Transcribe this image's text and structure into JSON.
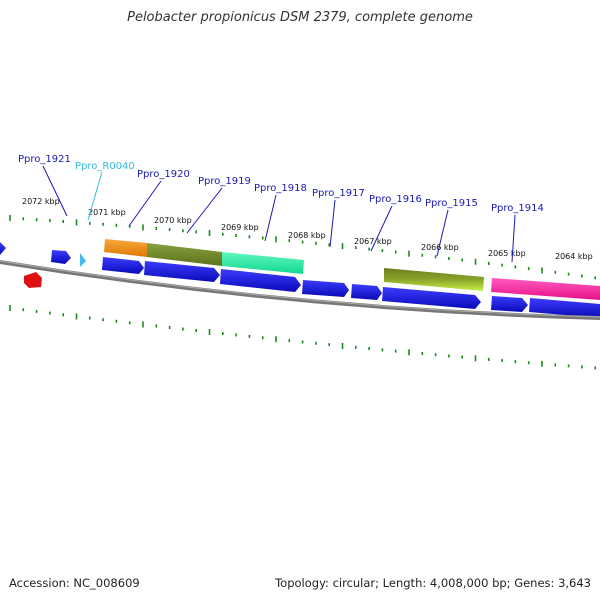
{
  "title": "Pelobacter propionicus DSM 2379, complete genome",
  "footer": {
    "accession": "Accession: NC_008609",
    "topology": "Topology: circular; Length: 4,008,000 bp; Genes: 3,643"
  },
  "colors": {
    "cds": "#1a1adc",
    "trna": "#44bbee",
    "rrna": "#dd1111",
    "backbone": "#777777",
    "tick": "#1a8a1a",
    "label": "#1a1ab0"
  },
  "kbp_labels": [
    "2072 kbp",
    "2071 kbp",
    "2070 kbp",
    "2069 kbp",
    "2068 kbp",
    "2067 kbp",
    "2066 kbp",
    "2065 kbp",
    "2064 kbp"
  ],
  "gene_labels": [
    {
      "id": "Ppro_1921",
      "type": "cds"
    },
    {
      "id": "Ppro_R0040",
      "type": "rna"
    },
    {
      "id": "Ppro_1920",
      "type": "cds"
    },
    {
      "id": "Ppro_1919",
      "type": "cds"
    },
    {
      "id": "Ppro_1918",
      "type": "cds"
    },
    {
      "id": "Ppro_1917",
      "type": "cds"
    },
    {
      "id": "Ppro_1916",
      "type": "cds"
    },
    {
      "id": "Ppro_1915",
      "type": "cds"
    },
    {
      "id": "Ppro_1914",
      "type": "cds"
    }
  ],
  "function_bands": [
    {
      "color": "#f08c14"
    },
    {
      "color": "#6e8c22"
    },
    {
      "color": "#22ee9c"
    },
    {
      "color": "#7c8c18"
    },
    {
      "color": "#ff22a0"
    }
  ]
}
